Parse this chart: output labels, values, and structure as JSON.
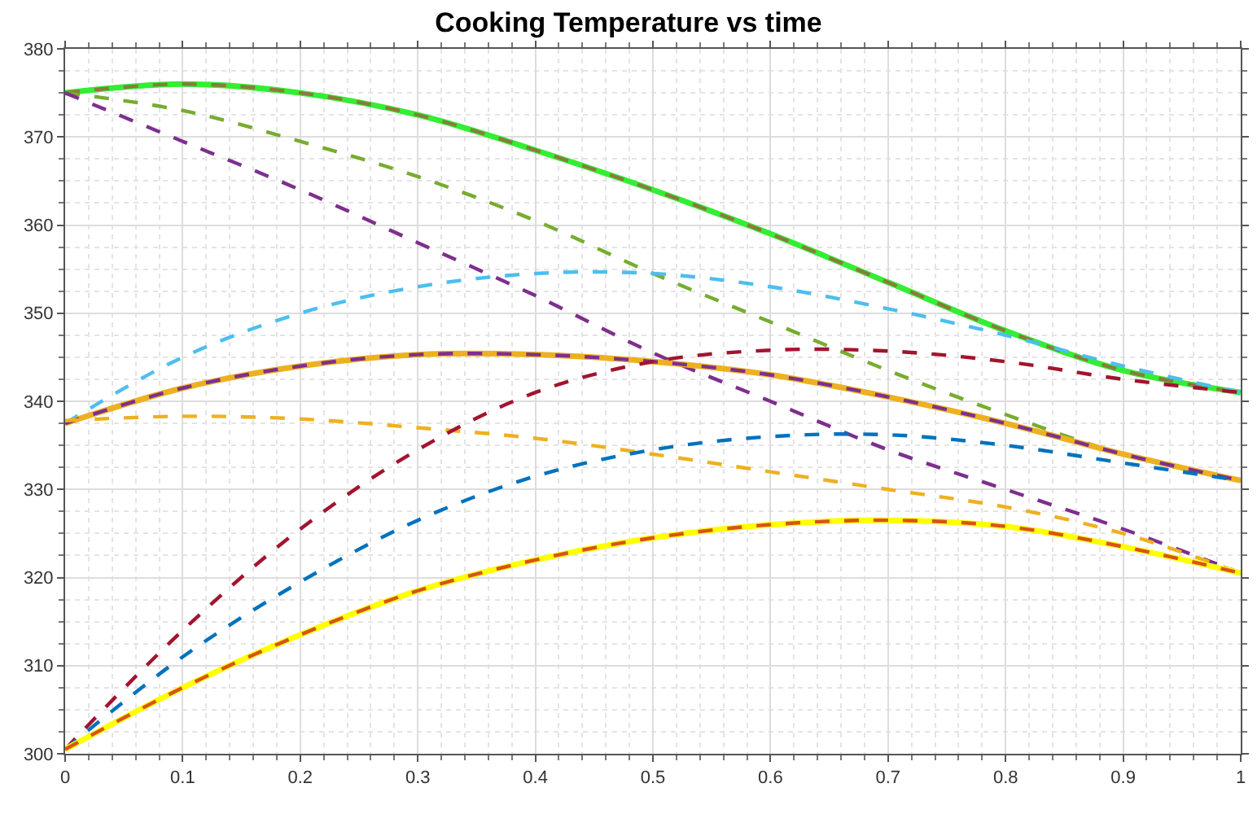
{
  "chart_data": {
    "type": "line",
    "title": "Cooking Temperature vs time",
    "x": [
      0,
      0.1,
      0.2,
      0.3,
      0.4,
      0.5,
      0.6,
      0.7,
      0.8,
      0.9,
      1
    ],
    "xlim": [
      0,
      1
    ],
    "xticks": [
      0,
      0.1,
      0.2,
      0.3,
      0.4,
      0.5,
      0.6,
      0.7,
      0.8,
      0.9,
      1
    ],
    "ylim": [
      300,
      380
    ],
    "yticks": [
      300,
      310,
      320,
      330,
      340,
      350,
      360,
      370,
      380
    ],
    "grid": true,
    "marker": "none",
    "series": [
      {
        "color": "#33ee33",
        "line_style": "solid",
        "values": [
          375,
          376,
          375,
          372.5,
          368.5,
          364,
          359,
          353.5,
          348,
          343.5,
          341
        ]
      },
      {
        "color": "#8c7a3c",
        "line_style": "dashed",
        "values": [
          375,
          376,
          375,
          372.5,
          368.5,
          364,
          359,
          353.5,
          348,
          343.5,
          341
        ]
      },
      {
        "color": "#77ac30",
        "line_style": "dashed",
        "values": [
          375,
          373,
          369.5,
          365.5,
          360.5,
          354.5,
          349,
          343.5,
          338.5,
          334,
          331
        ]
      },
      {
        "color": "#7e2f8e",
        "line_style": "dashed",
        "values": [
          375,
          369.5,
          364,
          358,
          352,
          345.5,
          340,
          334.5,
          330,
          325.5,
          320.5
        ]
      },
      {
        "color": "#4dbeee",
        "line_style": "dashed",
        "values": [
          337.5,
          345,
          350,
          353,
          354.5,
          354.5,
          353,
          350.5,
          347.5,
          344,
          341
        ]
      },
      {
        "color": "#edb120",
        "line_style": "solid",
        "values": [
          337.5,
          341.5,
          344,
          345.3,
          345.3,
          344.5,
          343,
          340.5,
          337.5,
          334,
          331
        ]
      },
      {
        "color": "#7e2f8e",
        "line_style": "dashed",
        "values": [
          337.5,
          341.5,
          344,
          345.3,
          345.3,
          344.5,
          343,
          340.5,
          337.5,
          334,
          331
        ]
      },
      {
        "color": "#edb120",
        "line_style": "dashed",
        "values": [
          337.8,
          338.3,
          338,
          337,
          335.8,
          334,
          332,
          330,
          328,
          325,
          320.5
        ]
      },
      {
        "color": "#a2142f",
        "line_style": "dashed",
        "values": [
          300.5,
          314,
          325.5,
          334.5,
          341,
          344.5,
          345.8,
          345.7,
          344.5,
          342.5,
          341
        ]
      },
      {
        "color": "#0072bd",
        "line_style": "dashed",
        "values": [
          300.5,
          311,
          319.5,
          326.5,
          331.5,
          334.5,
          336,
          336.2,
          335,
          333,
          331
        ]
      },
      {
        "color": "#ffff00",
        "line_style": "solid",
        "values": [
          300.5,
          307.5,
          313.5,
          318.5,
          322,
          324.5,
          326,
          326.5,
          325.8,
          323.5,
          320.5
        ]
      },
      {
        "color": "#d95319",
        "line_style": "dashed",
        "values": [
          300.5,
          307.5,
          313.5,
          318.5,
          322,
          324.5,
          326,
          326.5,
          325.8,
          323.5,
          320.5
        ]
      }
    ]
  }
}
